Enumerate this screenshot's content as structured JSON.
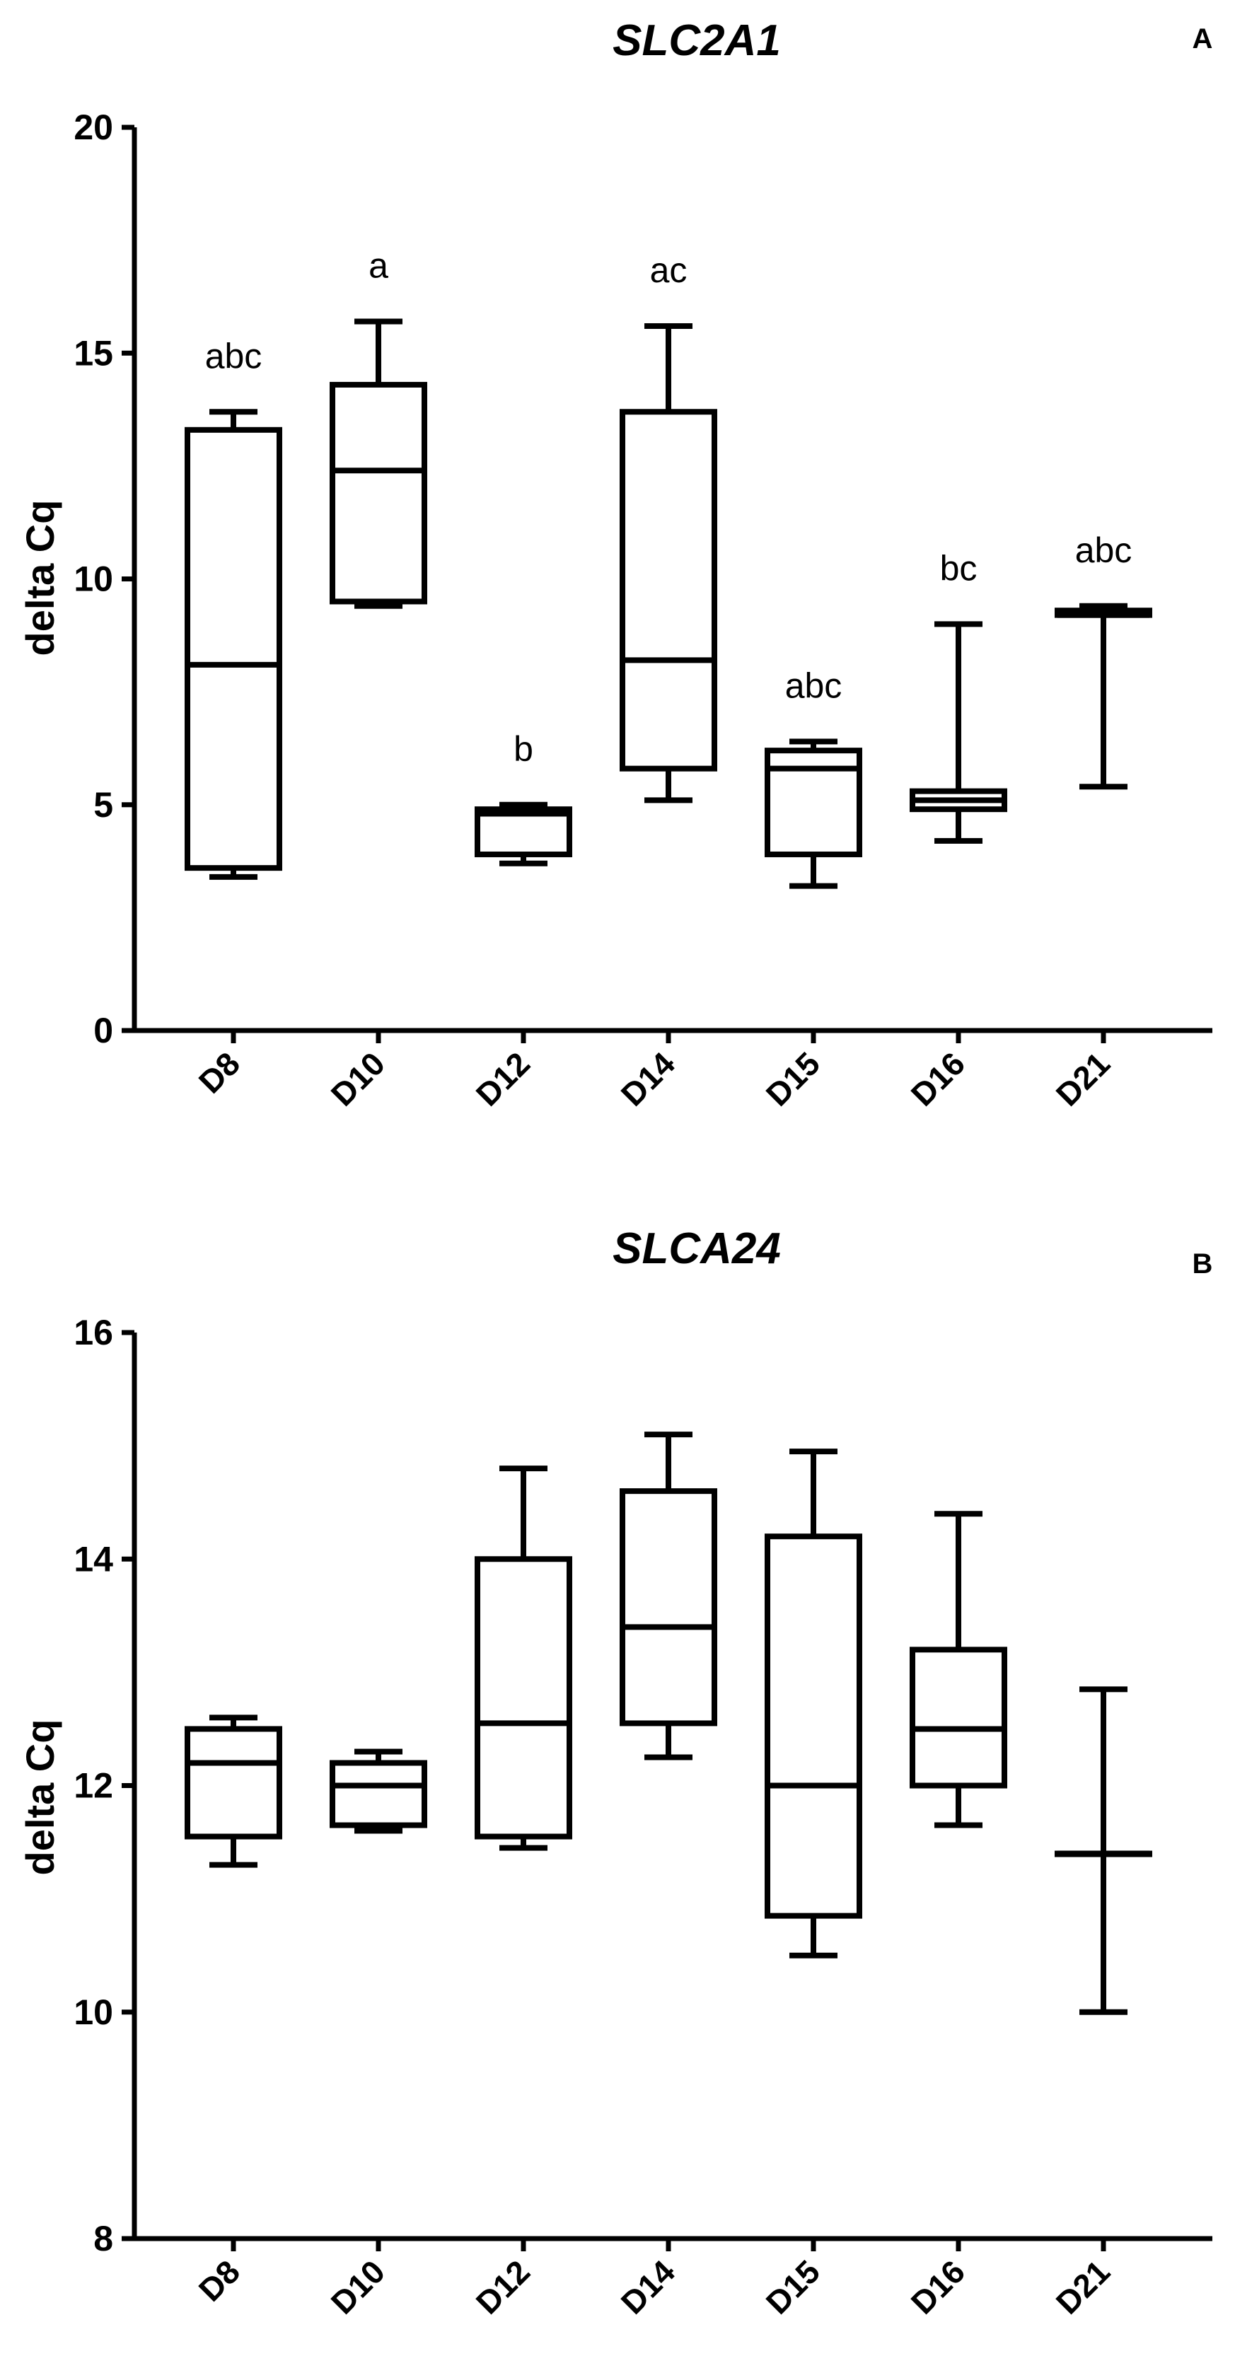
{
  "chart_data": [
    {
      "type": "box",
      "panel": "A",
      "title": "SLC2A1",
      "xlabel": "",
      "ylabel": "delta Cq",
      "ylim": [
        0,
        20
      ],
      "yticks": [
        0,
        5,
        10,
        15,
        20
      ],
      "categories": [
        "D8",
        "D10",
        "D12",
        "D14",
        "D15",
        "D16",
        "D21"
      ],
      "boxes": [
        {
          "min": 3.4,
          "q1": 3.6,
          "median": 8.1,
          "q3": 13.3,
          "max": 13.7
        },
        {
          "min": 9.4,
          "q1": 9.5,
          "median": 12.4,
          "q3": 14.3,
          "max": 15.7
        },
        {
          "min": 3.7,
          "q1": 3.9,
          "median": 4.8,
          "q3": 4.9,
          "max": 5.0
        },
        {
          "min": 5.1,
          "q1": 5.8,
          "median": 8.2,
          "q3": 13.7,
          "max": 15.6
        },
        {
          "min": 3.2,
          "q1": 3.9,
          "median": 5.8,
          "q3": 6.2,
          "max": 6.4
        },
        {
          "min": 4.2,
          "q1": 4.9,
          "median": 5.1,
          "q3": 5.3,
          "max": 9.0
        },
        {
          "min": 5.4,
          "q1": 9.2,
          "median": 9.2,
          "q3": 9.3,
          "max": 9.4
        }
      ],
      "annotations": [
        "abc",
        "a",
        "b",
        "ac",
        "abc",
        "bc",
        "abc"
      ]
    },
    {
      "type": "box",
      "panel": "B",
      "title": "SLCA24",
      "xlabel": "",
      "ylabel": "delta Cq",
      "ylim": [
        8,
        16
      ],
      "yticks": [
        8,
        10,
        12,
        14,
        16
      ],
      "categories": [
        "D8",
        "D10",
        "D12",
        "D14",
        "D15",
        "D16",
        "D21"
      ],
      "boxes": [
        {
          "min": 11.3,
          "q1": 11.55,
          "median": 12.2,
          "q3": 12.5,
          "max": 12.6
        },
        {
          "min": 11.6,
          "q1": 11.65,
          "median": 12.0,
          "q3": 12.2,
          "max": 12.3
        },
        {
          "min": 11.45,
          "q1": 11.55,
          "median": 12.55,
          "q3": 14.0,
          "max": 14.8
        },
        {
          "min": 12.25,
          "q1": 12.55,
          "median": 13.4,
          "q3": 14.6,
          "max": 15.1
        },
        {
          "min": 10.5,
          "q1": 10.85,
          "median": 12.0,
          "q3": 14.2,
          "max": 14.95
        },
        {
          "min": 11.65,
          "q1": 12.0,
          "median": 12.5,
          "q3": 13.2,
          "max": 14.4
        },
        {
          "min": 10.0,
          "q1": 11.4,
          "median": 11.4,
          "q3": 11.4,
          "max": 12.85
        }
      ],
      "annotations": []
    }
  ]
}
